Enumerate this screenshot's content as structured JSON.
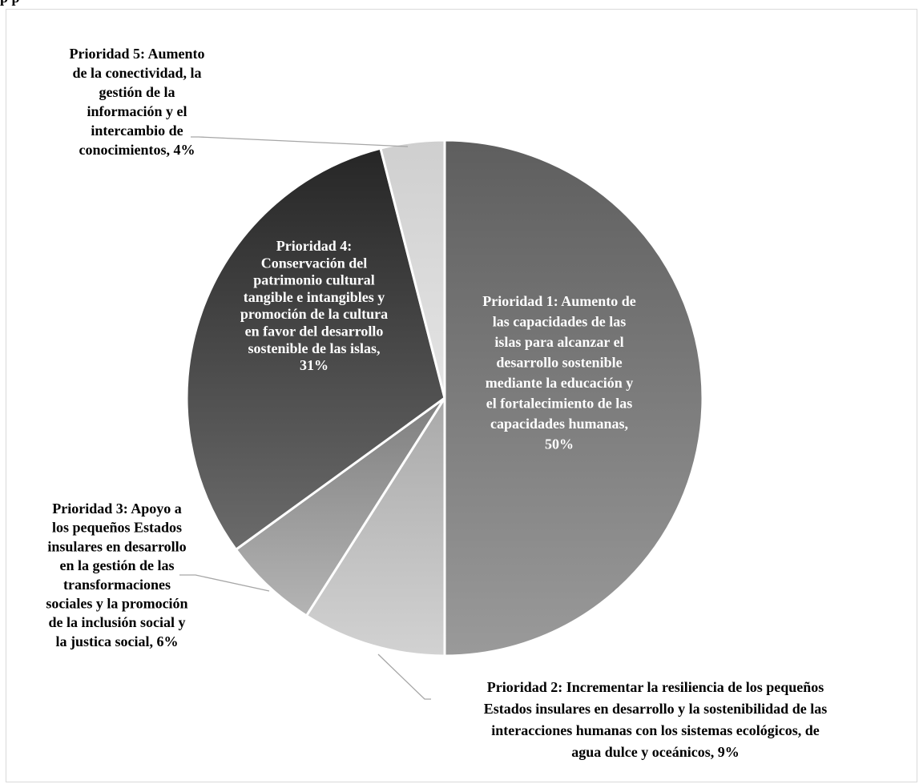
{
  "header_fragment": "p p",
  "chart_data": {
    "type": "pie",
    "title": "",
    "start_angle_deg": 0,
    "direction": "clockwise",
    "slices": [
      {
        "label_lines": [
          "Prioridad 1: Aumento de",
          "las capacidades de las",
          "islas para alcanzar el",
          "desarrollo sostenible",
          "mediante la educación y",
          "el fortalecimiento de las",
          "capacidades humanas,",
          "50%"
        ],
        "label": "Prioridad 1: Aumento de las capacidades de las islas para alcanzar el desarrollo sostenible mediante la educación y el fortalecimiento de las capacidades humanas",
        "value": 50,
        "color_light": "#9a9a9a",
        "color_dark": "#5e5e5e",
        "text_color": "#ffffff"
      },
      {
        "label_lines": [
          "Prioridad 2: Incrementar la resiliencia de los pequeños",
          "Estados insulares en desarrollo y la sostenibilidad de las",
          "interacciones humanas con los sistemas ecológicos, de",
          "agua dulce y oceánicos, 9%"
        ],
        "label": "Prioridad 2: Incrementar la resiliencia de los pequeños Estados insulares en desarrollo y la sostenibilidad de las interacciones humanas con los sistemas ecológicos, de agua dulce y oceánicos",
        "value": 9,
        "color_light": "#d2d2d2",
        "color_dark": "#a9a9a9",
        "text_color": "#000000"
      },
      {
        "label_lines": [
          "Prioridad 3: Apoyo a",
          "los pequeños Estados",
          "insulares en desarrollo",
          "en la gestión de las",
          "transformaciones",
          "sociales y la promoción",
          "de la inclusión social y",
          "la justica social, 6%"
        ],
        "label": "Prioridad 3: Apoyo a los pequeños Estados insulares en desarrollo en la gestión de las transformaciones sociales y la promoción de la inclusión social y la justica social",
        "value": 6,
        "color_light": "#b4b4b4",
        "color_dark": "#7f7f7f",
        "text_color": "#000000"
      },
      {
        "label_lines": [
          "Prioridad 4:",
          "Conservación del",
          "patrimonio cultural",
          "tangible e intangibles y",
          "promoción de la cultura",
          "en favor del desarrollo",
          "sostenible de las islas,",
          "31%"
        ],
        "label": "Prioridad 4: Conservación del patrimonio cultural tangible e intangibles y promoción de la cultura en favor del desarrollo sostenible de las islas",
        "value": 31,
        "color_light": "#6b6b6b",
        "color_dark": "#262626",
        "text_color": "#ffffff"
      },
      {
        "label_lines": [
          "Prioridad 5: Aumento",
          "de la conectividad, la",
          "gestión de la",
          "información y el",
          "intercambio de",
          "conocimientos, 4%"
        ],
        "label": "Prioridad 5: Aumento de la conectividad, la gestión de la información y el intercambio de conocimientos",
        "value": 4,
        "color_light": "#e4e4e4",
        "color_dark": "#cfcfcf",
        "text_color": "#000000"
      }
    ],
    "legend": "none",
    "data_labels": "category name and percentage"
  }
}
